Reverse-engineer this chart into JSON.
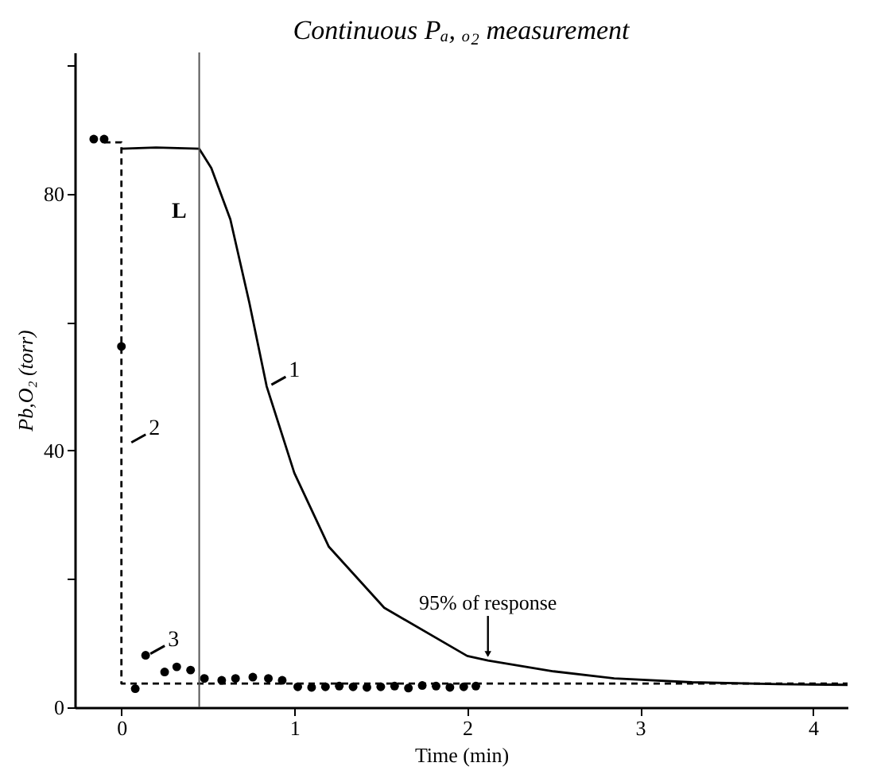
{
  "chart_data": {
    "type": "line",
    "title": "Continuous Pₐ, ₒ₂ measurement",
    "xlabel": "Time (min)",
    "ylabel": "Pb,O₂ (torr)",
    "xlim": [
      -0.27,
      4.2
    ],
    "ylim": [
      0,
      102
    ],
    "xticks": [
      0,
      1,
      2,
      3,
      4
    ],
    "yticks": [
      0,
      {
        "value": 20,
        "label": null
      },
      40,
      {
        "value": 60,
        "label": null
      },
      80,
      {
        "value": 100,
        "label": null
      }
    ],
    "grid": false,
    "series": [
      {
        "color": "#000000",
        "line_style": "solid",
        "marker": "none",
        "x": [
          0,
          0.2,
          0.45,
          0.52,
          0.63,
          0.74,
          0.84,
          1.0,
          1.2,
          1.52,
          2.0,
          2.12,
          2.5,
          2.85,
          3.3,
          3.8,
          4.2
        ],
        "values": [
          87,
          87.2,
          87,
          84,
          76,
          63,
          50,
          36.5,
          25,
          15.5,
          8,
          7.3,
          5.6,
          4.5,
          3.9,
          3.6,
          3.5
        ]
      },
      {
        "color": "#000000",
        "line_style": "dashed",
        "marker": "none",
        "x": [
          -0.1,
          0,
          0,
          4.2
        ],
        "values": [
          88,
          88,
          3.7,
          3.7
        ]
      },
      {
        "type": "scatter",
        "color": "#000000",
        "marker": "circle",
        "x": [
          -0.16,
          -0.1,
          0,
          0.08,
          0.14,
          0.25,
          0.32,
          0.4,
          0.48,
          0.58,
          0.66,
          0.76,
          0.85,
          0.93,
          1.02,
          1.1,
          1.18,
          1.26,
          1.34,
          1.42,
          1.5,
          1.58,
          1.66,
          1.74,
          1.82,
          1.9,
          1.98,
          2.05
        ],
        "values": [
          88.5,
          88.5,
          56.2,
          2.9,
          8.1,
          5.5,
          6.3,
          5.8,
          4.5,
          4.2,
          4.5,
          4.7,
          4.5,
          4.2,
          3.2,
          3.1,
          3.2,
          3.3,
          3.2,
          3.1,
          3.2,
          3.3,
          3.0,
          3.4,
          3.3,
          3.1,
          3.2,
          3.3
        ]
      }
    ],
    "ref_lines": [
      {
        "axis": "x",
        "value": 0.45,
        "label": "L",
        "color": "#555555",
        "line_style": "solid"
      }
    ],
    "annotations": [
      {
        "text": "1",
        "x": 0.84,
        "y": 50
      },
      {
        "text": "2",
        "x": 0.03,
        "y": 41
      },
      {
        "text": "3",
        "x": 0.14,
        "y": 8.1
      },
      {
        "text": "95% of response",
        "x": 2.12,
        "y": 7.3
      }
    ]
  }
}
